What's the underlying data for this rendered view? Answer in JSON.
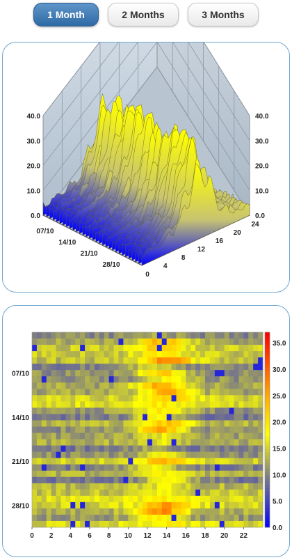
{
  "tabs": [
    {
      "label": "1 Month",
      "active": true
    },
    {
      "label": "2 Months",
      "active": false
    },
    {
      "label": "3 Months",
      "active": false
    }
  ],
  "colors": {
    "accent": "#3a75b0",
    "panel_border": "#6ea6cf",
    "scale": [
      "#0000ff",
      "#808080",
      "#ffff00",
      "#ff0000"
    ]
  },
  "chart_data": [
    {
      "type": "surface3d",
      "x_axis": {
        "ticks": [
          "0",
          "4",
          "8",
          "12",
          "16",
          "20",
          "24"
        ],
        "range": [
          0,
          24
        ]
      },
      "y_axis": {
        "ticks": [
          "07/10",
          "14/10",
          "21/10",
          "28/10"
        ]
      },
      "z_axis": {
        "ticks": [
          "0.0",
          "10.0",
          "20.0",
          "30.0",
          "40.0"
        ],
        "range": [
          0,
          40
        ]
      },
      "grid": true,
      "colorscale": "blue-gray-yellow"
    },
    {
      "type": "heatmap",
      "x_ticks": [
        "0",
        "2",
        "4",
        "6",
        "8",
        "10",
        "12",
        "14",
        "16",
        "18",
        "20",
        "22"
      ],
      "y_ticks": [
        "07/10",
        "14/10",
        "21/10",
        "28/10"
      ],
      "colorbar": {
        "ticks": [
          "0.0",
          "5.0",
          "10.0",
          "15.0",
          "20.0",
          "25.0",
          "30.0",
          "35.0"
        ],
        "range": [
          0,
          37
        ]
      },
      "x_range": [
        0,
        24
      ],
      "days": 31,
      "colorscale": "blue-gray-yellow-red"
    }
  ]
}
